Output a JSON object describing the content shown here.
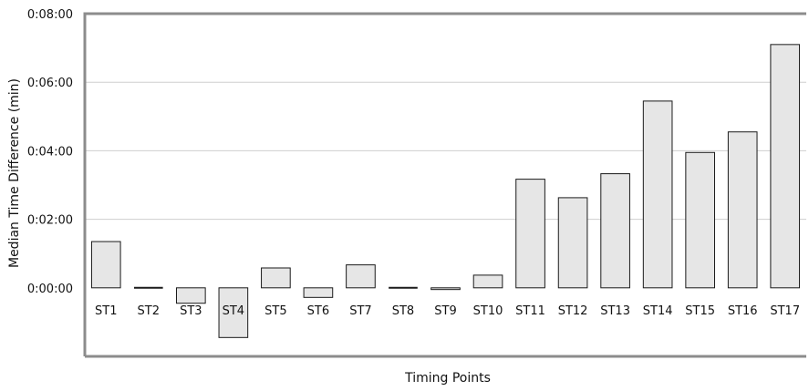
{
  "chart_data": {
    "type": "bar",
    "title": "",
    "xlabel": "Timing Points",
    "ylabel": "Median Time Difference (min)",
    "categories": [
      "ST1",
      "ST2",
      "ST3",
      "ST4",
      "ST5",
      "ST6",
      "ST7",
      "ST8",
      "ST9",
      "ST10",
      "ST11",
      "ST12",
      "ST13",
      "ST14",
      "ST15",
      "ST16",
      "ST17"
    ],
    "values": [
      1.35,
      0.0,
      -0.45,
      -1.45,
      0.58,
      -0.28,
      0.67,
      0.0,
      -0.05,
      0.37,
      3.17,
      2.63,
      3.33,
      5.45,
      3.95,
      4.55,
      7.1
    ],
    "ylim": [
      -2.0,
      8.0
    ],
    "yticks": [
      0,
      2,
      4,
      6,
      8
    ],
    "ytick_labels": [
      "0:00:00",
      "0:02:00",
      "0:04:00",
      "0:06:00",
      "0:08:00"
    ],
    "grid": true,
    "colors": {
      "bar_fill": "#e6e6e6",
      "bar_stroke": "#1a1a1a",
      "frame": "#8c8c8c",
      "grid": "#cfcfcf",
      "zero_line": "#1a1a1a"
    }
  }
}
